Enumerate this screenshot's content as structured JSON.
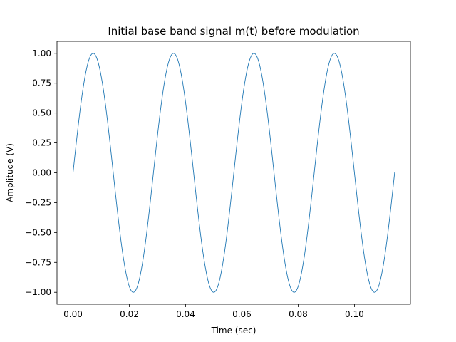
{
  "chart_data": {
    "type": "line",
    "title": "Initial base band signal m(t) before modulation",
    "xlabel": "Time (sec)",
    "ylabel": "Amplitude (V)",
    "xlim": [
      -0.0057,
      0.1199
    ],
    "ylim": [
      -1.1,
      1.1
    ],
    "xticks": [
      0.0,
      0.02,
      0.04,
      0.06,
      0.08,
      0.1
    ],
    "xtick_labels": [
      "0.00",
      "0.02",
      "0.04",
      "0.06",
      "0.08",
      "0.10"
    ],
    "yticks": [
      -1.0,
      -0.75,
      -0.5,
      -0.25,
      0.0,
      0.25,
      0.5,
      0.75,
      1.0
    ],
    "ytick_labels": [
      "−1.00",
      "−0.75",
      "−0.50",
      "−0.25",
      "0.00",
      "0.25",
      "0.50",
      "0.75",
      "1.00"
    ],
    "grid": false,
    "series": [
      {
        "color": "#1f77b4",
        "function": "sine",
        "amplitude": 1.0,
        "frequency_hz": 35,
        "x_range": [
          0.0,
          0.1143
        ],
        "x": [
          0.0,
          0.0071,
          0.0143,
          0.0214,
          0.0286,
          0.0357,
          0.0429,
          0.05,
          0.0571,
          0.0643,
          0.0714,
          0.0786,
          0.0857,
          0.0929,
          0.1,
          0.1071,
          0.1143
        ],
        "y": [
          0.0,
          1.0,
          0.0,
          -1.0,
          0.0,
          1.0,
          0.0,
          -1.0,
          0.0,
          1.0,
          0.0,
          -1.0,
          0.0,
          1.0,
          0.0,
          -1.0,
          0.0
        ]
      }
    ]
  }
}
